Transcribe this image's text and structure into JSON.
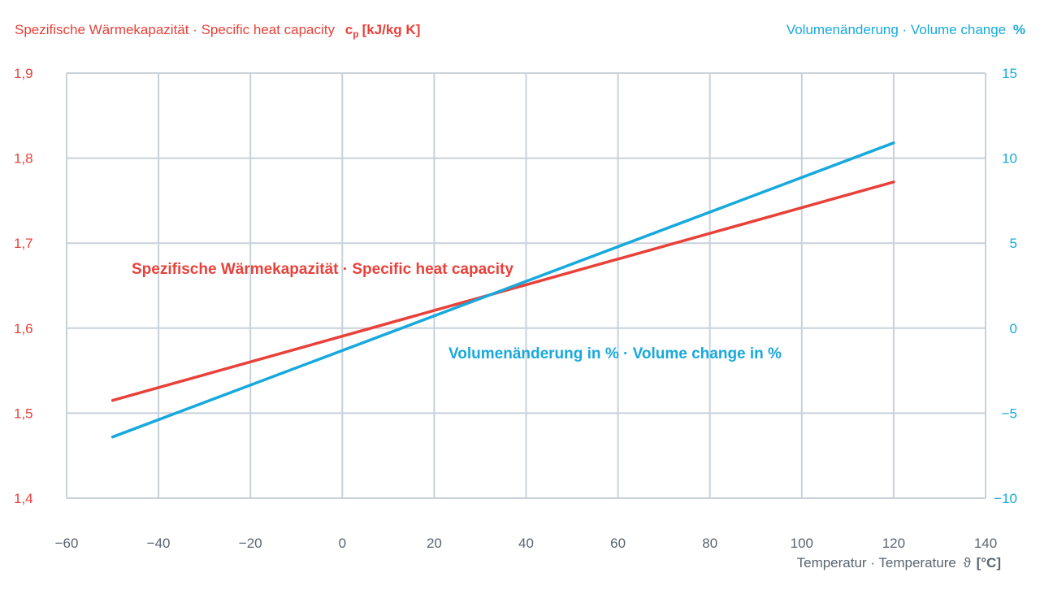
{
  "chart_data": {
    "type": "line",
    "left_axis_title": {
      "text": "Spezifische Wärmekapazität · Specific heat capacity",
      "unit_symbol": "c",
      "unit_subscript": "p",
      "unit": "[kJ/kg K]"
    },
    "right_axis_title": {
      "text": "Volumenänderung · Volume change",
      "unit": "%"
    },
    "xlabel": {
      "text": "Temperatur · Temperature",
      "symbol": "ϑ",
      "unit": "[°C]"
    },
    "xlim": [
      -60,
      140
    ],
    "ylim_left": [
      1.4,
      1.9
    ],
    "ylim_right": [
      -10,
      15
    ],
    "x_ticks": [
      "−60",
      "−40",
      "−20",
      "0",
      "20",
      "40",
      "60",
      "80",
      "100",
      "120",
      "140"
    ],
    "y_left_ticks": [
      "1,9",
      "1,8",
      "1,7",
      "1,6",
      "1,5",
      "1,4"
    ],
    "y_right_ticks": [
      "15",
      "10",
      "5",
      "0",
      "−5",
      "−10"
    ],
    "grid": true,
    "series": [
      {
        "name": "Spezifische Wärmekapazität · Specific heat capacity",
        "axis": "left",
        "color": "#e8413a",
        "x": [
          -50,
          120
        ],
        "y": [
          1.515,
          1.772
        ]
      },
      {
        "name": "Volumenänderung in % · Volume change in %",
        "axis": "right",
        "color": "#17a9dc",
        "x": [
          -50,
          120
        ],
        "y": [
          -6.4,
          10.9
        ]
      }
    ]
  },
  "colors": {
    "red": "#e8413a",
    "blue": "#17a9dc",
    "grid": "#c9d1d9",
    "text_grey": "#5a6470"
  }
}
